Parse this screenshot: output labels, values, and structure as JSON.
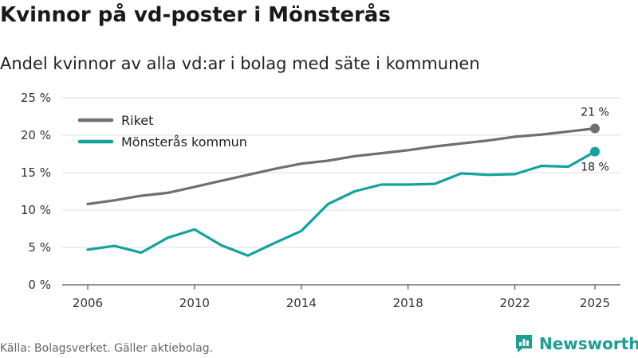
{
  "header": {
    "title": "Kvinnor på vd-poster i Mönsterås",
    "subtitle": "Andel kvinnor av alla vd:ar i bolag med säte i kommunen"
  },
  "footer": {
    "source": "Källa: Bolagsverket. Gäller aktiebolag."
  },
  "brand": {
    "name": "Newsworthy",
    "icon": "newsworthy-logo-icon",
    "color": "#1b9e93"
  },
  "chart_data": {
    "type": "line",
    "title": "Kvinnor på vd-poster i Mönsterås",
    "subtitle": "Andel kvinnor av alla vd:ar i bolag med säte i kommunen",
    "xlabel": "",
    "ylabel": "",
    "x": [
      2006,
      2007,
      2008,
      2009,
      2010,
      2011,
      2012,
      2013,
      2014,
      2015,
      2016,
      2017,
      2018,
      2019,
      2020,
      2021,
      2022,
      2023,
      2024,
      2025
    ],
    "xlim": [
      2006,
      2025
    ],
    "ylim": [
      0,
      25
    ],
    "x_ticks": [
      2006,
      2010,
      2014,
      2018,
      2022,
      2025
    ],
    "x_tick_labels": [
      "2006",
      "2010",
      "2014",
      "2018",
      "2022",
      "2025"
    ],
    "y_ticks": [
      0,
      5,
      10,
      15,
      20,
      25
    ],
    "y_tick_labels": [
      "0 %",
      "5 %",
      "10 %",
      "15 %",
      "20 %",
      "25 %"
    ],
    "grid": true,
    "legend_position": "top-left",
    "series": [
      {
        "name": "Riket",
        "color": "#6e6e73",
        "values": [
          10.8,
          11.3,
          11.9,
          12.3,
          13.1,
          13.9,
          14.7,
          15.5,
          16.2,
          16.6,
          17.2,
          17.6,
          18.0,
          18.5,
          18.9,
          19.3,
          19.8,
          20.1,
          20.5,
          20.9
        ],
        "end_label": "21 %"
      },
      {
        "name": "Mönsterås kommun",
        "color": "#11a39c",
        "values": [
          4.7,
          5.2,
          4.3,
          6.3,
          7.4,
          5.3,
          3.9,
          5.6,
          7.2,
          10.8,
          12.5,
          13.4,
          13.4,
          13.5,
          14.9,
          14.7,
          14.8,
          15.9,
          15.8,
          17.8
        ],
        "end_label": "18 %"
      }
    ]
  }
}
